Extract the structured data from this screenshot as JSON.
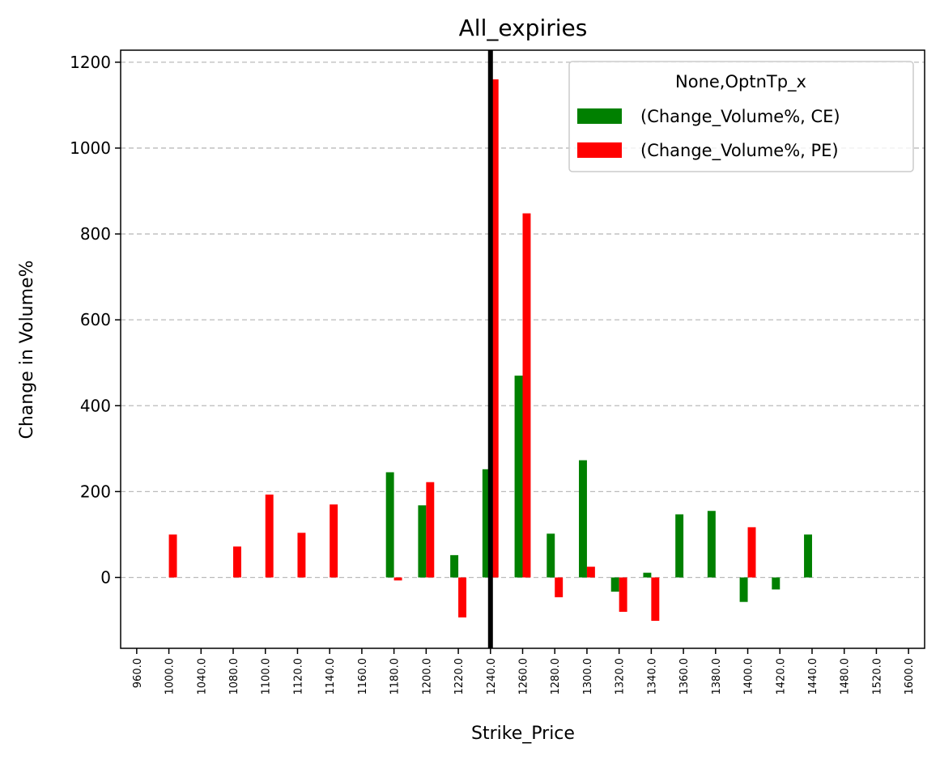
{
  "chart_data": {
    "type": "bar",
    "title": "All_expiries",
    "xlabel": "Strike_Price",
    "ylabel": "Change in Volume%",
    "categories": [
      "960.0",
      "1000.0",
      "1040.0",
      "1080.0",
      "1100.0",
      "1120.0",
      "1140.0",
      "1160.0",
      "1180.0",
      "1200.0",
      "1220.0",
      "1240.0",
      "1260.0",
      "1280.0",
      "1300.0",
      "1320.0",
      "1340.0",
      "1360.0",
      "1380.0",
      "1400.0",
      "1420.0",
      "1440.0",
      "1480.0",
      "1520.0",
      "1600.0"
    ],
    "series": [
      {
        "name": "(Change_Volume%, CE)",
        "color": "#008000",
        "values": [
          null,
          null,
          null,
          null,
          null,
          null,
          null,
          null,
          245,
          168,
          52,
          252,
          470,
          102,
          273,
          -33,
          11,
          147,
          155,
          -57,
          -28,
          100,
          null,
          null,
          null
        ]
      },
      {
        "name": "(Change_Volume%, PE)",
        "color": "#ff0000",
        "values": [
          null,
          100,
          null,
          72,
          193,
          104,
          170,
          null,
          -7,
          222,
          -93,
          1160,
          848,
          -46,
          25,
          -80,
          -101,
          null,
          null,
          117,
          null,
          null,
          null,
          null,
          null
        ]
      }
    ],
    "yticks": [
      0,
      200,
      400,
      600,
      800,
      1000,
      1200
    ],
    "ylim": [
      -165,
      1228
    ],
    "grid": "horizontal dashed",
    "reference_line": {
      "category": "1240.0",
      "color": "#000000"
    },
    "legend": {
      "title": "None,OptnTp_x",
      "placement": "top-right"
    }
  }
}
